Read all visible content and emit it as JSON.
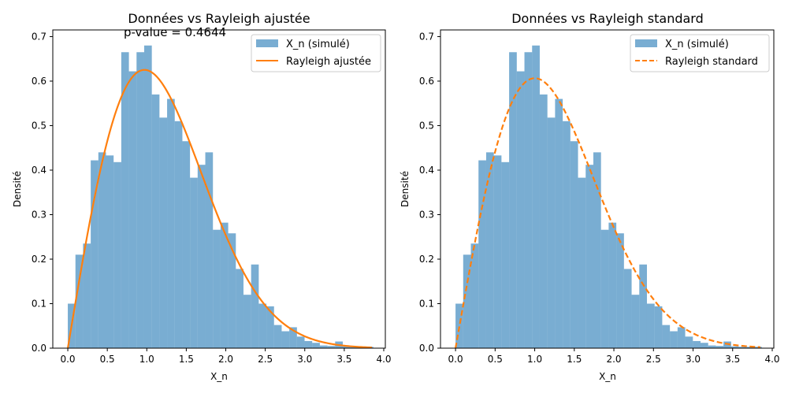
{
  "chart_data": [
    {
      "type": "bar",
      "title": "Données vs Rayleigh ajustée",
      "annotation": "p-value = 0.4644",
      "xlabel": "X_n",
      "ylabel": "Densité",
      "xlim": [
        -0.19,
        4.02
      ],
      "ylim": [
        0,
        0.715
      ],
      "xticks": [
        "0.0",
        "0.5",
        "1.0",
        "1.5",
        "2.0",
        "2.5",
        "3.0",
        "3.5",
        "4.0"
      ],
      "yticks": [
        "0.0",
        "0.1",
        "0.2",
        "0.3",
        "0.4",
        "0.5",
        "0.6",
        "0.7"
      ],
      "legend_position": "top-right",
      "histogram": {
        "name": "X_n (simulé)",
        "color": "#1f77b4",
        "bin_start": 0.0,
        "bin_width": 0.0967,
        "values": [
          0.1,
          0.21,
          0.235,
          0.422,
          0.44,
          0.433,
          0.418,
          0.665,
          0.622,
          0.665,
          0.68,
          0.57,
          0.518,
          0.56,
          0.51,
          0.465,
          0.383,
          0.412,
          0.44,
          0.266,
          0.282,
          0.258,
          0.178,
          0.12,
          0.188,
          0.1,
          0.094,
          0.052,
          0.038,
          0.047,
          0.026,
          0.016,
          0.012,
          0.006,
          0.005,
          0.015,
          0.004,
          0.003,
          0.003,
          0.003
        ]
      },
      "curve": {
        "name": "Rayleigh ajustée",
        "color": "#ff7f0e",
        "style": "solid",
        "sigma": 0.97,
        "x_range": [
          0.0,
          3.85
        ]
      }
    },
    {
      "type": "bar",
      "title": "Données vs Rayleigh standard",
      "xlabel": "X_n",
      "ylabel": "Densité",
      "xlim": [
        -0.19,
        4.02
      ],
      "ylim": [
        0,
        0.715
      ],
      "xticks": [
        "0.0",
        "0.5",
        "1.0",
        "1.5",
        "2.0",
        "2.5",
        "3.0",
        "3.5",
        "4.0"
      ],
      "yticks": [
        "0.0",
        "0.1",
        "0.2",
        "0.3",
        "0.4",
        "0.5",
        "0.6",
        "0.7"
      ],
      "legend_position": "top-right",
      "histogram": {
        "name": "X_n (simulé)",
        "color": "#1f77b4",
        "bin_start": 0.0,
        "bin_width": 0.0967,
        "values": [
          0.1,
          0.21,
          0.235,
          0.422,
          0.44,
          0.433,
          0.418,
          0.665,
          0.622,
          0.665,
          0.68,
          0.57,
          0.518,
          0.56,
          0.51,
          0.465,
          0.383,
          0.412,
          0.44,
          0.266,
          0.282,
          0.258,
          0.178,
          0.12,
          0.188,
          0.1,
          0.094,
          0.052,
          0.038,
          0.047,
          0.026,
          0.016,
          0.012,
          0.006,
          0.005,
          0.015,
          0.004,
          0.003,
          0.003,
          0.003
        ]
      },
      "curve": {
        "name": "Rayleigh standard",
        "color": "#ff7f0e",
        "style": "dashed",
        "sigma": 1.0,
        "x_range": [
          0.0,
          3.85
        ]
      }
    }
  ]
}
